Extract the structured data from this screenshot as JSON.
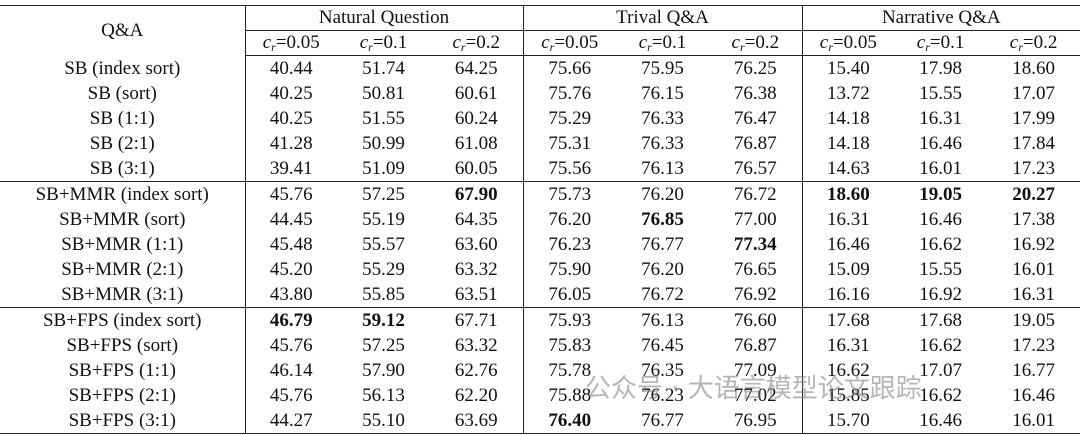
{
  "table": {
    "corner": "Q&A",
    "groups": [
      "Natural Question",
      "Trival Q&A",
      "Narrative Q&A"
    ],
    "subheaders": [
      {
        "var": "c",
        "sub": "r",
        "rest": "=0.05"
      },
      {
        "var": "c",
        "sub": "r",
        "rest": "=0.1"
      },
      {
        "var": "c",
        "sub": "r",
        "rest": "=0.2"
      },
      {
        "var": "c",
        "sub": "r",
        "rest": "=0.05"
      },
      {
        "var": "c",
        "sub": "r",
        "rest": "=0.1"
      },
      {
        "var": "c",
        "sub": "r",
        "rest": "=0.2"
      },
      {
        "var": "c",
        "sub": "r",
        "rest": "=0.05"
      },
      {
        "var": "c",
        "sub": "r",
        "rest": "=0.1"
      },
      {
        "var": "c",
        "sub": "r",
        "rest": "=0.2"
      }
    ],
    "row_groups": [
      {
        "rows": [
          {
            "label": "SB (index sort)",
            "values": [
              "40.44",
              "51.74",
              "64.25",
              "75.66",
              "75.95",
              "76.25",
              "15.40",
              "17.98",
              "18.60"
            ]
          },
          {
            "label": "SB (sort)",
            "values": [
              "40.25",
              "50.81",
              "60.61",
              "75.76",
              "76.15",
              "76.38",
              "13.72",
              "15.55",
              "17.07"
            ]
          },
          {
            "label": "SB (1:1)",
            "values": [
              "40.25",
              "51.55",
              "60.24",
              "75.29",
              "76.33",
              "76.47",
              "14.18",
              "16.31",
              "17.99"
            ]
          },
          {
            "label": "SB (2:1)",
            "values": [
              "41.28",
              "50.99",
              "61.08",
              "75.31",
              "76.33",
              "76.87",
              "14.18",
              "16.46",
              "17.84"
            ]
          },
          {
            "label": "SB (3:1)",
            "values": [
              "39.41",
              "51.09",
              "60.05",
              "75.56",
              "76.13",
              "76.57",
              "14.63",
              "16.01",
              "17.23"
            ]
          }
        ]
      },
      {
        "rows": [
          {
            "label": "SB+MMR (index sort)",
            "values": [
              "45.76",
              "57.25",
              {
                "text": "67.90",
                "bold": true
              },
              "75.73",
              "76.20",
              "76.72",
              {
                "text": "18.60",
                "bold": true
              },
              {
                "text": "19.05",
                "bold": true
              },
              {
                "text": "20.27",
                "bold": true
              }
            ]
          },
          {
            "label": "SB+MMR (sort)",
            "values": [
              "44.45",
              "55.19",
              "64.35",
              "76.20",
              {
                "text": "76.85",
                "bold": true
              },
              "77.00",
              "16.31",
              "16.46",
              "17.38"
            ]
          },
          {
            "label": "SB+MMR (1:1)",
            "values": [
              "45.48",
              "55.57",
              "63.60",
              "76.23",
              "76.77",
              {
                "text": "77.34",
                "bold": true
              },
              "16.46",
              "16.62",
              "16.92"
            ]
          },
          {
            "label": "SB+MMR (2:1)",
            "values": [
              "45.20",
              "55.29",
              "63.32",
              "75.90",
              "76.20",
              "76.65",
              "15.09",
              "15.55",
              "16.01"
            ]
          },
          {
            "label": "SB+MMR (3:1)",
            "values": [
              "43.80",
              "55.85",
              "63.51",
              "76.05",
              "76.72",
              "76.92",
              "16.16",
              "16.92",
              "16.31"
            ]
          }
        ]
      },
      {
        "rows": [
          {
            "label": "SB+FPS (index sort)",
            "values": [
              {
                "text": "46.79",
                "bold": true
              },
              {
                "text": "59.12",
                "bold": true
              },
              "67.71",
              "75.93",
              "76.13",
              "76.60",
              "17.68",
              "17.68",
              "19.05"
            ]
          },
          {
            "label": "SB+FPS (sort)",
            "values": [
              "45.76",
              "57.25",
              "63.32",
              "75.83",
              "76.45",
              "76.87",
              "16.31",
              "16.62",
              "17.23"
            ]
          },
          {
            "label": "SB+FPS (1:1)",
            "values": [
              "46.14",
              "57.90",
              "62.76",
              "75.78",
              "76.35",
              "77.09",
              "16.62",
              "17.07",
              "16.77"
            ]
          },
          {
            "label": "SB+FPS (2:1)",
            "values": [
              "45.76",
              "56.13",
              "62.20",
              "75.88",
              "76.23",
              "77.02",
              "15.85",
              "16.62",
              "16.46"
            ]
          },
          {
            "label": "SB+FPS (3:1)",
            "values": [
              "44.27",
              "55.10",
              "63.69",
              {
                "text": "76.40",
                "bold": true
              },
              "76.77",
              "76.95",
              "15.70",
              "16.46",
              "16.01"
            ]
          }
        ]
      }
    ],
    "watermark": "公众号 · 大语言模型论文跟踪"
  }
}
